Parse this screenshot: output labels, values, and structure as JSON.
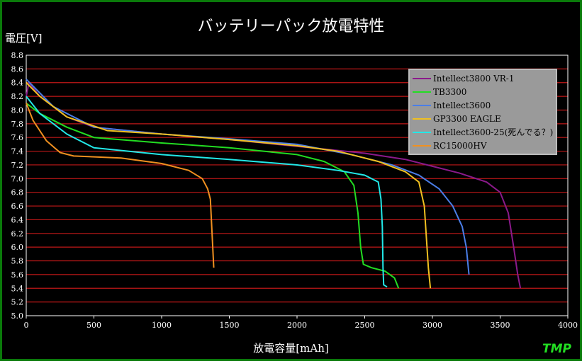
{
  "chart_data": {
    "type": "line",
    "title": "バッテリーパック放電特性",
    "ylabel": "電圧[V]",
    "xlabel": "放電容量[mAh]",
    "xlim": [
      0,
      4000
    ],
    "ylim": [
      5.0,
      8.8
    ],
    "xticks": [
      0,
      500,
      1000,
      1500,
      2000,
      2500,
      3000,
      3500,
      4000
    ],
    "yticks": [
      5.0,
      5.2,
      5.4,
      5.6,
      5.8,
      6.0,
      6.2,
      6.4,
      6.6,
      6.8,
      7.0,
      7.2,
      7.4,
      7.6,
      7.8,
      8.0,
      8.2,
      8.4,
      8.6,
      8.8
    ],
    "grid": "horizontal",
    "legend_position": "top-right",
    "series": [
      {
        "name": "Intellect3800 VR-1",
        "color": "#8b1a8b",
        "points": [
          [
            0,
            8.2
          ],
          [
            20,
            8.4
          ],
          [
            100,
            8.2
          ],
          [
            300,
            7.9
          ],
          [
            500,
            7.75
          ],
          [
            1000,
            7.65
          ],
          [
            1500,
            7.57
          ],
          [
            2000,
            7.47
          ],
          [
            2500,
            7.37
          ],
          [
            2800,
            7.28
          ],
          [
            3000,
            7.18
          ],
          [
            3200,
            7.08
          ],
          [
            3400,
            6.95
          ],
          [
            3500,
            6.8
          ],
          [
            3560,
            6.5
          ],
          [
            3600,
            6.0
          ],
          [
            3630,
            5.6
          ],
          [
            3650,
            5.4
          ]
        ]
      },
      {
        "name": "TB3300",
        "color": "#22dd22",
        "points": [
          [
            0,
            8.1
          ],
          [
            100,
            7.95
          ],
          [
            300,
            7.75
          ],
          [
            500,
            7.6
          ],
          [
            1000,
            7.52
          ],
          [
            1500,
            7.45
          ],
          [
            2000,
            7.35
          ],
          [
            2200,
            7.25
          ],
          [
            2350,
            7.1
          ],
          [
            2420,
            6.9
          ],
          [
            2450,
            6.5
          ],
          [
            2470,
            6.0
          ],
          [
            2490,
            5.75
          ],
          [
            2550,
            5.7
          ],
          [
            2650,
            5.65
          ],
          [
            2720,
            5.55
          ],
          [
            2750,
            5.4
          ]
        ]
      },
      {
        "name": "Intellect3600",
        "color": "#4a7ee8",
        "points": [
          [
            0,
            8.45
          ],
          [
            50,
            8.35
          ],
          [
            200,
            8.05
          ],
          [
            500,
            7.75
          ],
          [
            1000,
            7.65
          ],
          [
            1500,
            7.58
          ],
          [
            2000,
            7.5
          ],
          [
            2400,
            7.35
          ],
          [
            2700,
            7.2
          ],
          [
            2900,
            7.05
          ],
          [
            3050,
            6.85
          ],
          [
            3150,
            6.6
          ],
          [
            3220,
            6.3
          ],
          [
            3250,
            6.0
          ],
          [
            3260,
            5.8
          ],
          [
            3270,
            5.6
          ]
        ]
      },
      {
        "name": "GP3300 EAGLE",
        "color": "#f0c020",
        "points": [
          [
            0,
            8.4
          ],
          [
            100,
            8.2
          ],
          [
            300,
            7.9
          ],
          [
            600,
            7.7
          ],
          [
            1000,
            7.65
          ],
          [
            1500,
            7.57
          ],
          [
            2000,
            7.48
          ],
          [
            2300,
            7.4
          ],
          [
            2600,
            7.25
          ],
          [
            2800,
            7.1
          ],
          [
            2900,
            6.95
          ],
          [
            2940,
            6.6
          ],
          [
            2960,
            6.0
          ],
          [
            2970,
            5.7
          ],
          [
            2985,
            5.4
          ]
        ]
      },
      {
        "name": "Intellect3600-25(死んでる？)",
        "color": "#22e8e8",
        "points": [
          [
            0,
            8.2
          ],
          [
            100,
            7.95
          ],
          [
            300,
            7.65
          ],
          [
            500,
            7.45
          ],
          [
            1000,
            7.35
          ],
          [
            1500,
            7.28
          ],
          [
            2000,
            7.2
          ],
          [
            2300,
            7.12
          ],
          [
            2500,
            7.05
          ],
          [
            2600,
            6.95
          ],
          [
            2620,
            6.7
          ],
          [
            2630,
            6.3
          ],
          [
            2635,
            5.7
          ],
          [
            2640,
            5.45
          ],
          [
            2665,
            5.42
          ]
        ]
      },
      {
        "name": "RC15000HV",
        "color": "#f09020",
        "points": [
          [
            0,
            8.1
          ],
          [
            50,
            7.85
          ],
          [
            150,
            7.55
          ],
          [
            250,
            7.38
          ],
          [
            350,
            7.33
          ],
          [
            700,
            7.3
          ],
          [
            1000,
            7.22
          ],
          [
            1200,
            7.12
          ],
          [
            1300,
            7.0
          ],
          [
            1340,
            6.85
          ],
          [
            1360,
            6.7
          ],
          [
            1370,
            6.3
          ],
          [
            1380,
            5.9
          ],
          [
            1385,
            5.7
          ]
        ]
      }
    ]
  },
  "logo": "TMP"
}
